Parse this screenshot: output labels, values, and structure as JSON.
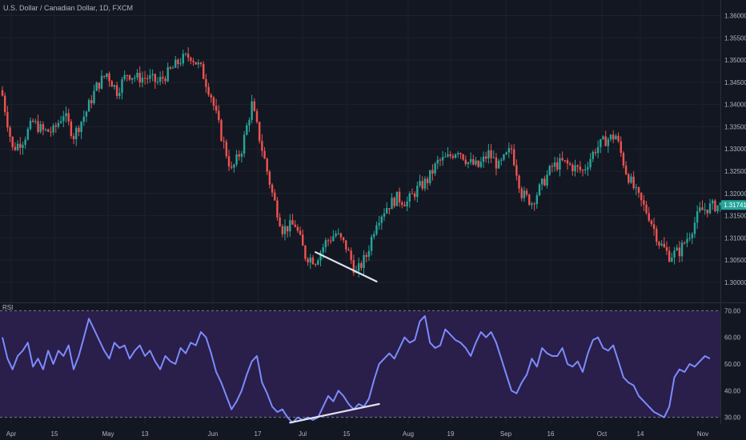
{
  "header": {
    "symbol_title": "U.S. Dollar / Canadian Dollar, 1D, FXCM"
  },
  "indicator": {
    "label": "RSI"
  },
  "current_price": {
    "value": 1.31741,
    "label": "1.31741",
    "color": "#26a69a"
  },
  "colors": {
    "background": "#131722",
    "grid": "#1e222d",
    "up": "#26a69a",
    "down": "#ef5350",
    "rsi_line": "#7b8cff",
    "rsi_band": "#2a1e4a",
    "divergence_line": "#e0e3eb"
  },
  "chart_data": [
    {
      "type": "candlestick",
      "title": "U.S. Dollar / Canadian Dollar, 1D, FXCM",
      "ylim": [
        1.2955,
        1.3635
      ],
      "y_ticks": [
        "1.36000",
        "1.35500",
        "1.35000",
        "1.34500",
        "1.34000",
        "1.33500",
        "1.33000",
        "1.32500",
        "1.32000",
        "1.31500",
        "1.31000",
        "1.30500",
        "1.30000"
      ],
      "x_ticks": [
        "Apr",
        "15",
        "May",
        "13",
        "Jun",
        "17",
        "Jul",
        "15",
        "Aug",
        "19",
        "Sep",
        "16",
        "Oct",
        "14",
        "Nov"
      ],
      "grid": false,
      "close_path": [
        [
          0,
          1.342
        ],
        [
          4,
          1.33
        ],
        [
          8,
          1.332
        ],
        [
          12,
          1.336
        ],
        [
          16,
          1.334
        ],
        [
          20,
          1.334
        ],
        [
          24,
          1.338
        ],
        [
          28,
          1.333
        ],
        [
          33,
          1.3385
        ],
        [
          37,
          1.344
        ],
        [
          41,
          1.347
        ],
        [
          45,
          1.343
        ],
        [
          49,
          1.347
        ],
        [
          53,
          1.346
        ],
        [
          57,
          1.346
        ],
        [
          61,
          1.345
        ],
        [
          65,
          1.347
        ],
        [
          70,
          1.35
        ],
        [
          74,
          1.351
        ],
        [
          78,
          1.348
        ],
        [
          82,
          1.342
        ],
        [
          86,
          1.333
        ],
        [
          90,
          1.325
        ],
        [
          94,
          1.33
        ],
        [
          98,
          1.34
        ],
        [
          102,
          1.33
        ],
        [
          106,
          1.32
        ],
        [
          110,
          1.312
        ],
        [
          115,
          1.313
        ],
        [
          119,
          1.306
        ],
        [
          123,
          1.305
        ],
        [
          127,
          1.309
        ],
        [
          131,
          1.311
        ],
        [
          135,
          1.308
        ],
        [
          139,
          1.302
        ],
        [
          143,
          1.306
        ],
        [
          147,
          1.314
        ],
        [
          151,
          1.317
        ],
        [
          155,
          1.319
        ],
        [
          159,
          1.318
        ],
        [
          163,
          1.321
        ],
        [
          167,
          1.323
        ],
        [
          171,
          1.327
        ],
        [
          175,
          1.328
        ],
        [
          179,
          1.33
        ],
        [
          183,
          1.327
        ],
        [
          187,
          1.326
        ],
        [
          191,
          1.329
        ],
        [
          195,
          1.326
        ],
        [
          200,
          1.33
        ],
        [
          204,
          1.32
        ],
        [
          208,
          1.318
        ],
        [
          212,
          1.322
        ],
        [
          216,
          1.326
        ],
        [
          220,
          1.327
        ],
        [
          224,
          1.326
        ],
        [
          228,
          1.325
        ],
        [
          233,
          1.33
        ],
        [
          237,
          1.332
        ],
        [
          241,
          1.333
        ],
        [
          245,
          1.325
        ],
        [
          249,
          1.32
        ],
        [
          254,
          1.315
        ],
        [
          258,
          1.309
        ],
        [
          262,
          1.306
        ],
        [
          266,
          1.307
        ],
        [
          270,
          1.311
        ],
        [
          274,
          1.316
        ],
        [
          278,
          1.317
        ],
        [
          282,
          1.3174
        ]
      ],
      "divergence_line": {
        "from": [
          123,
          1.3068
        ],
        "to": [
          147,
          1.3002
        ]
      }
    },
    {
      "type": "line",
      "title": "RSI",
      "ylim": [
        27.5,
        72.5
      ],
      "y_ticks": [
        "70.00",
        "60.00",
        "50.00",
        "40.00",
        "30.00"
      ],
      "band": [
        30,
        70
      ],
      "points": [
        [
          0,
          60
        ],
        [
          2,
          52
        ],
        [
          4,
          48
        ],
        [
          6,
          53
        ],
        [
          8,
          55
        ],
        [
          10,
          58
        ],
        [
          12,
          49
        ],
        [
          14,
          52
        ],
        [
          16,
          48
        ],
        [
          18,
          55
        ],
        [
          20,
          50
        ],
        [
          22,
          55
        ],
        [
          24,
          53
        ],
        [
          26,
          57
        ],
        [
          28,
          48
        ],
        [
          30,
          53
        ],
        [
          32,
          60
        ],
        [
          34,
          67
        ],
        [
          36,
          63
        ],
        [
          38,
          59
        ],
        [
          40,
          55
        ],
        [
          42,
          52
        ],
        [
          44,
          58
        ],
        [
          46,
          56
        ],
        [
          48,
          57
        ],
        [
          50,
          52
        ],
        [
          52,
          55
        ],
        [
          54,
          57
        ],
        [
          56,
          53
        ],
        [
          58,
          55
        ],
        [
          60,
          51
        ],
        [
          62,
          48
        ],
        [
          64,
          53
        ],
        [
          66,
          51
        ],
        [
          68,
          50
        ],
        [
          70,
          56
        ],
        [
          72,
          54
        ],
        [
          74,
          58
        ],
        [
          76,
          57
        ],
        [
          78,
          62
        ],
        [
          80,
          60
        ],
        [
          82,
          54
        ],
        [
          84,
          47
        ],
        [
          86,
          43
        ],
        [
          88,
          38
        ],
        [
          90,
          33
        ],
        [
          92,
          36
        ],
        [
          94,
          40
        ],
        [
          96,
          46
        ],
        [
          98,
          51
        ],
        [
          100,
          53
        ],
        [
          102,
          43
        ],
        [
          104,
          39
        ],
        [
          106,
          34
        ],
        [
          108,
          32
        ],
        [
          110,
          33
        ],
        [
          112,
          30
        ],
        [
          114,
          28
        ],
        [
          116,
          30
        ],
        [
          118,
          29
        ],
        [
          120,
          30
        ],
        [
          122,
          29
        ],
        [
          124,
          30
        ],
        [
          126,
          34
        ],
        [
          128,
          38
        ],
        [
          130,
          36
        ],
        [
          132,
          40
        ],
        [
          134,
          38
        ],
        [
          136,
          35
        ],
        [
          138,
          33
        ],
        [
          140,
          35
        ],
        [
          142,
          34
        ],
        [
          144,
          37
        ],
        [
          146,
          44
        ],
        [
          148,
          50
        ],
        [
          150,
          52
        ],
        [
          152,
          54
        ],
        [
          154,
          52
        ],
        [
          156,
          56
        ],
        [
          158,
          60
        ],
        [
          160,
          58
        ],
        [
          162,
          59
        ],
        [
          164,
          66
        ],
        [
          166,
          68
        ],
        [
          168,
          58
        ],
        [
          170,
          56
        ],
        [
          172,
          57
        ],
        [
          174,
          63
        ],
        [
          176,
          61
        ],
        [
          178,
          59
        ],
        [
          180,
          58
        ],
        [
          182,
          56
        ],
        [
          184,
          53
        ],
        [
          186,
          58
        ],
        [
          188,
          62
        ],
        [
          190,
          60
        ],
        [
          192,
          62
        ],
        [
          194,
          58
        ],
        [
          196,
          52
        ],
        [
          198,
          46
        ],
        [
          200,
          40
        ],
        [
          202,
          39
        ],
        [
          204,
          43
        ],
        [
          206,
          46
        ],
        [
          208,
          52
        ],
        [
          210,
          49
        ],
        [
          212,
          56
        ],
        [
          214,
          54
        ],
        [
          216,
          53
        ],
        [
          218,
          53
        ],
        [
          220,
          56
        ],
        [
          222,
          50
        ],
        [
          224,
          49
        ],
        [
          226,
          51
        ],
        [
          228,
          47
        ],
        [
          230,
          54
        ],
        [
          232,
          59
        ],
        [
          234,
          60
        ],
        [
          236,
          56
        ],
        [
          238,
          55
        ],
        [
          240,
          57
        ],
        [
          242,
          51
        ],
        [
          244,
          45
        ],
        [
          246,
          43
        ],
        [
          248,
          42
        ],
        [
          250,
          38
        ],
        [
          252,
          36
        ],
        [
          254,
          34
        ],
        [
          256,
          32
        ],
        [
          258,
          31
        ],
        [
          260,
          30
        ],
        [
          262,
          34
        ],
        [
          264,
          45
        ],
        [
          266,
          48
        ],
        [
          268,
          47
        ],
        [
          270,
          50
        ],
        [
          272,
          49
        ],
        [
          274,
          51
        ],
        [
          276,
          53
        ],
        [
          278,
          52
        ]
      ],
      "divergence_line": {
        "from": [
          113,
          28.0
        ],
        "to": [
          148,
          35.0
        ]
      }
    }
  ]
}
